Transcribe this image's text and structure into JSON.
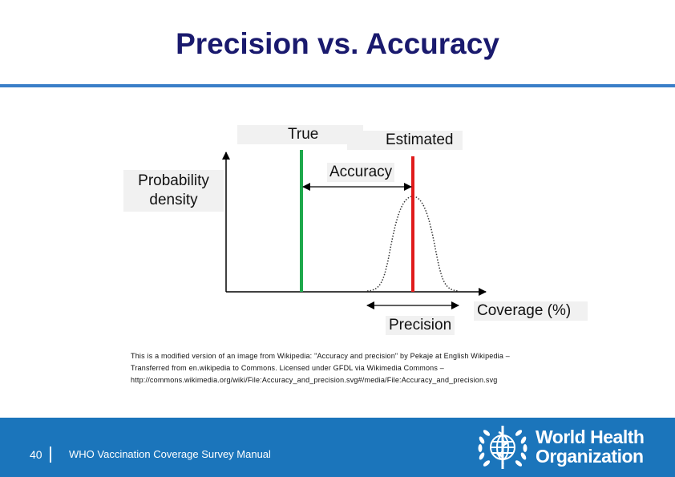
{
  "slide": {
    "title": "Precision vs. Accuracy",
    "page_number": "40",
    "footer_text": "WHO Vaccination Coverage Survey Manual"
  },
  "diagram": {
    "label_true": "True",
    "label_estimated": "Estimated",
    "label_accuracy": "Accuracy",
    "label_y_line1": "Probability",
    "label_y_line2": "density",
    "label_precision": "Precision",
    "label_x": "Coverage (%)"
  },
  "attribution": {
    "line1": "This is a modified version of an image from Wikipedia:    \"Accuracy and precision\" by Pekaje at English Wikipedia –",
    "line2": "Transferred from en.wikipedia to Commons. Licensed under GFDL via Wikimedia Commons –",
    "line3": "http://commons.wikimedia.org/wiki/File:Accuracy_and_precision.svg#/media/File:Accuracy_and_precision.svg"
  },
  "logo": {
    "line1": "World Health",
    "line2": "Organization"
  },
  "colors": {
    "title": "#1a1a6e",
    "accent_rule": "#3a7ec8",
    "footer_bg": "#1b75bb",
    "true_line": "#1ea84b",
    "estimated_line": "#e01b1b"
  },
  "icons": [
    "who-emblem-icon"
  ]
}
